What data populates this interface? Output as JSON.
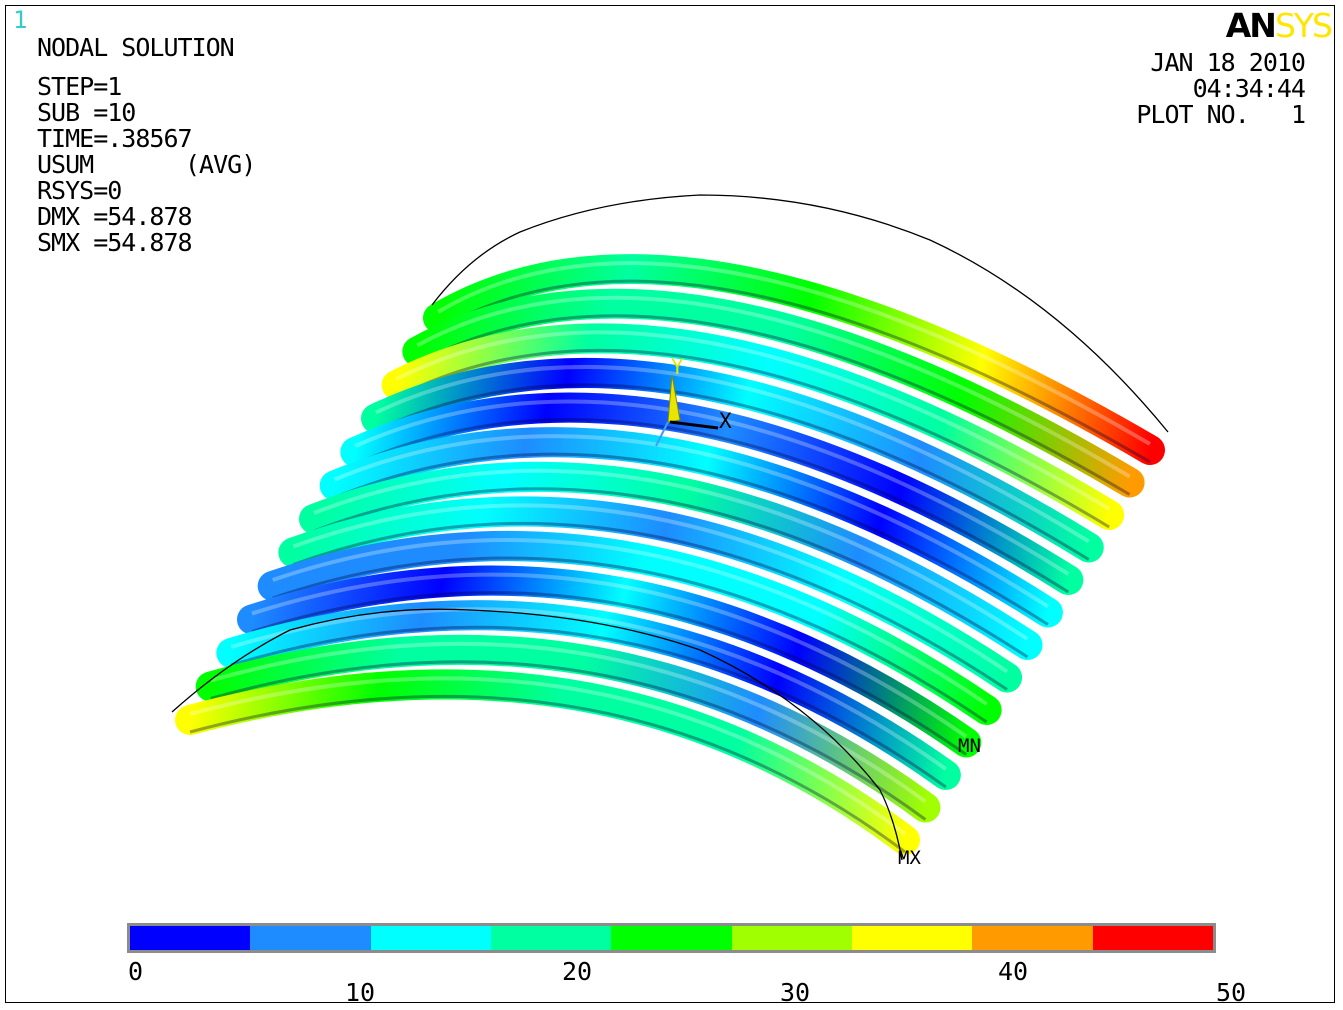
{
  "window_number": "1",
  "brand": {
    "part1": "AN",
    "part2": "SYS"
  },
  "header": {
    "title": "NODAL SOLUTION",
    "step": "STEP=1",
    "sub": "SUB =10",
    "time": "TIME=.38567",
    "usum": "USUM",
    "avg": "(AVG)",
    "rsys": "RSYS=0",
    "dmx": "DMX =54.878",
    "smx": "SMX =54.878"
  },
  "plot_info": {
    "date": "JAN 18 2010",
    "time": "04:34:44",
    "plot_no": "PLOT NO.   1"
  },
  "triad": {
    "y_label": "Y",
    "x_label": "X"
  },
  "markers": {
    "min": "MN",
    "max": "MX"
  },
  "legend": {
    "colors": [
      "#0000ff",
      "#1e8cff",
      "#00ffff",
      "#00ffa0",
      "#00ff00",
      "#a0ff00",
      "#ffff00",
      "#ff9b00",
      "#ff0000"
    ],
    "ticks_low": [
      "0",
      "20",
      "40"
    ],
    "ticks_high": [
      "10",
      "30",
      "50"
    ]
  }
}
